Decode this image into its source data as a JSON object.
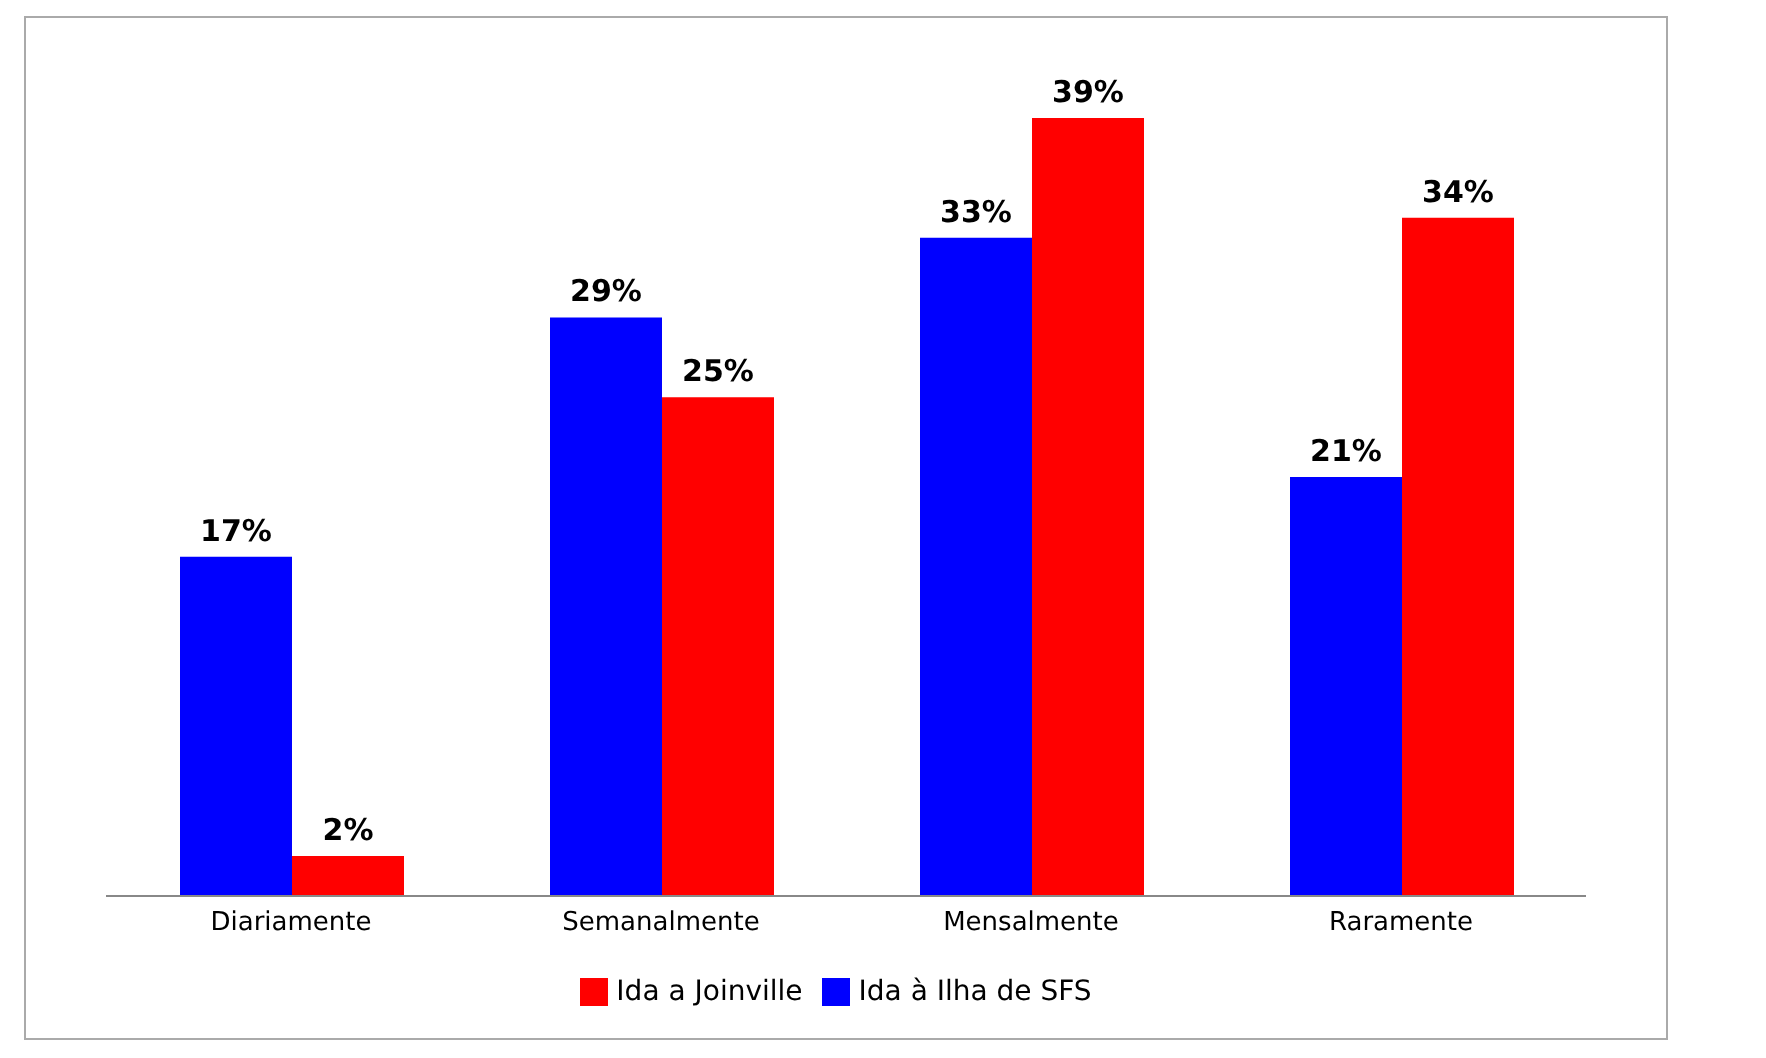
{
  "chart_data": {
    "type": "bar",
    "categories": [
      "Diariamente",
      "Semanalmente",
      "Mensalmente",
      "Raramente"
    ],
    "series": [
      {
        "name": "Ida à Ilha de SFS",
        "color": "#0000ff",
        "values": [
          17,
          29,
          33,
          21
        ],
        "value_labels": [
          "17%",
          "29%",
          "33%",
          "21%"
        ]
      },
      {
        "name": "Ida a Joinville",
        "color": "#ff0000",
        "values": [
          2,
          25,
          39,
          34
        ],
        "value_labels": [
          "2%",
          "25%",
          "39%",
          "34%"
        ]
      }
    ],
    "legend": "bottom",
    "grid": false
  }
}
